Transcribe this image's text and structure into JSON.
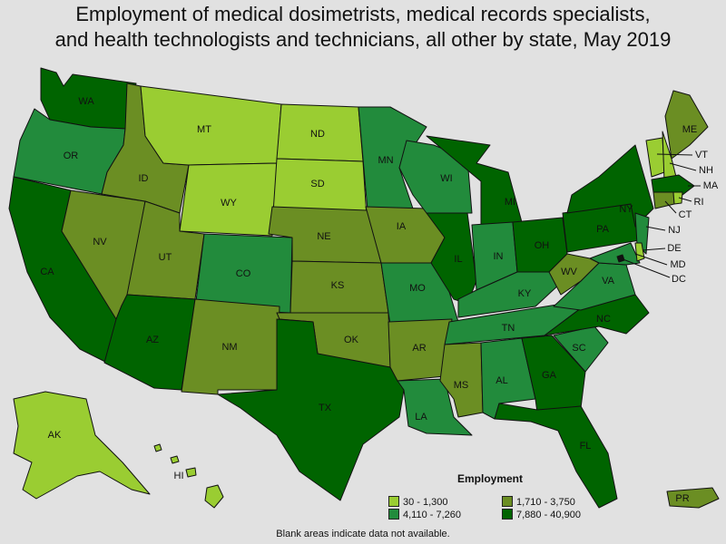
{
  "title": {
    "line1": "Employment of medical dosimetrists, medical records specialists,",
    "line2": "and health technologists and technicians, all other by state, May 2019"
  },
  "legend": {
    "title": "Employment",
    "bins": [
      {
        "label": "30 - 1,300",
        "color": "#9acd32"
      },
      {
        "label": "1,710 - 3,750",
        "color": "#6b8e23"
      },
      {
        "label": "4,110 - 7,260",
        "color": "#228b3c"
      },
      {
        "label": "7,880 - 40,900",
        "color": "#006400"
      }
    ]
  },
  "footnote": "Blank areas indicate data not available.",
  "states": [
    {
      "abbr": "WA",
      "bin": 3
    },
    {
      "abbr": "OR",
      "bin": 2
    },
    {
      "abbr": "CA",
      "bin": 3
    },
    {
      "abbr": "ID",
      "bin": 1
    },
    {
      "abbr": "NV",
      "bin": 1
    },
    {
      "abbr": "MT",
      "bin": 0
    },
    {
      "abbr": "WY",
      "bin": 0
    },
    {
      "abbr": "UT",
      "bin": 1
    },
    {
      "abbr": "AZ",
      "bin": 3
    },
    {
      "abbr": "CO",
      "bin": 2
    },
    {
      "abbr": "NM",
      "bin": 1
    },
    {
      "abbr": "ND",
      "bin": 0
    },
    {
      "abbr": "SD",
      "bin": 0
    },
    {
      "abbr": "NE",
      "bin": 1
    },
    {
      "abbr": "KS",
      "bin": 1
    },
    {
      "abbr": "OK",
      "bin": 1
    },
    {
      "abbr": "TX",
      "bin": 3
    },
    {
      "abbr": "MN",
      "bin": 2
    },
    {
      "abbr": "IA",
      "bin": 1
    },
    {
      "abbr": "MO",
      "bin": 2
    },
    {
      "abbr": "AR",
      "bin": 1
    },
    {
      "abbr": "LA",
      "bin": 2
    },
    {
      "abbr": "WI",
      "bin": 2
    },
    {
      "abbr": "IL",
      "bin": 3
    },
    {
      "abbr": "MI",
      "bin": 3
    },
    {
      "abbr": "IN",
      "bin": 2
    },
    {
      "abbr": "OH",
      "bin": 3
    },
    {
      "abbr": "KY",
      "bin": 2
    },
    {
      "abbr": "TN",
      "bin": 2
    },
    {
      "abbr": "MS",
      "bin": 1
    },
    {
      "abbr": "AL",
      "bin": 2
    },
    {
      "abbr": "GA",
      "bin": 3
    },
    {
      "abbr": "FL",
      "bin": 3
    },
    {
      "abbr": "SC",
      "bin": 2
    },
    {
      "abbr": "NC",
      "bin": 3
    },
    {
      "abbr": "VA",
      "bin": 2
    },
    {
      "abbr": "WV",
      "bin": 1
    },
    {
      "abbr": "PA",
      "bin": 3
    },
    {
      "abbr": "NY",
      "bin": 3
    },
    {
      "abbr": "NJ",
      "bin": 2
    },
    {
      "abbr": "DE",
      "bin": 0
    },
    {
      "abbr": "MD",
      "bin": 2
    },
    {
      "abbr": "DC",
      "bin": 3
    },
    {
      "abbr": "CT",
      "bin": 1
    },
    {
      "abbr": "RI",
      "bin": 0
    },
    {
      "abbr": "MA",
      "bin": 3
    },
    {
      "abbr": "VT",
      "bin": 0
    },
    {
      "abbr": "NH",
      "bin": 0
    },
    {
      "abbr": "ME",
      "bin": 1
    },
    {
      "abbr": "AK",
      "bin": 0
    },
    {
      "abbr": "HI",
      "bin": 0
    },
    {
      "abbr": "PR",
      "bin": 1
    }
  ]
}
